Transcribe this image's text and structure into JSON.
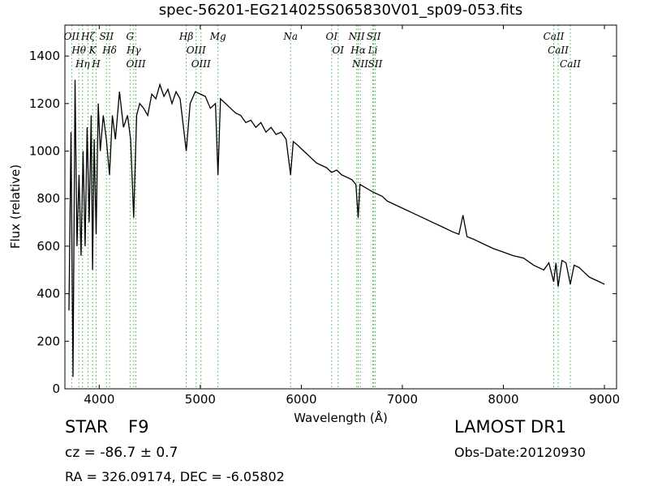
{
  "chart_data": {
    "type": "line",
    "title": "spec-56201-EG214025S065830V01_sp09-053.fits",
    "xlabel": "Wavelength (Å)",
    "ylabel": "Flux (relative)",
    "xlim": [
      3660,
      9120
    ],
    "ylim": [
      0,
      1530
    ],
    "xticks": [
      4000,
      5000,
      6000,
      7000,
      8000,
      9000
    ],
    "yticks": [
      0,
      200,
      400,
      600,
      800,
      1000,
      1200,
      1400
    ],
    "color": "#000000",
    "line_color": "#3cb043",
    "x": [
      3700,
      3720,
      3740,
      3760,
      3780,
      3800,
      3820,
      3840,
      3860,
      3880,
      3900,
      3920,
      3934,
      3950,
      3969,
      3990,
      4010,
      4040,
      4070,
      4102,
      4130,
      4160,
      4200,
      4240,
      4280,
      4310,
      4341,
      4370,
      4400,
      4440,
      4480,
      4520,
      4560,
      4600,
      4640,
      4680,
      4720,
      4760,
      4800,
      4861,
      4900,
      4950,
      5000,
      5050,
      5100,
      5150,
      5175,
      5200,
      5250,
      5300,
      5350,
      5400,
      5450,
      5500,
      5550,
      5600,
      5650,
      5700,
      5750,
      5800,
      5850,
      5894,
      5920,
      5950,
      6000,
      6050,
      6100,
      6150,
      6200,
      6250,
      6300,
      6350,
      6400,
      6450,
      6500,
      6540,
      6563,
      6580,
      6620,
      6660,
      6700,
      6750,
      6800,
      6850,
      6900,
      6950,
      7000,
      7100,
      7200,
      7300,
      7400,
      7500,
      7560,
      7600,
      7640,
      7700,
      7800,
      7900,
      8000,
      8100,
      8200,
      8300,
      8400,
      8450,
      8498,
      8520,
      8542,
      8580,
      8620,
      8662,
      8700,
      8750,
      8800,
      8850,
      8900,
      8950,
      9000
    ],
    "values": [
      330,
      1080,
      50,
      1300,
      600,
      900,
      560,
      1000,
      600,
      1100,
      700,
      1150,
      500,
      1050,
      650,
      1200,
      1000,
      1150,
      1050,
      900,
      1150,
      1050,
      1250,
      1100,
      1150,
      1050,
      720,
      1150,
      1200,
      1180,
      1150,
      1240,
      1220,
      1280,
      1230,
      1260,
      1200,
      1250,
      1220,
      1000,
      1200,
      1250,
      1240,
      1230,
      1180,
      1200,
      900,
      1220,
      1200,
      1180,
      1160,
      1150,
      1120,
      1130,
      1100,
      1120,
      1080,
      1100,
      1070,
      1080,
      1050,
      900,
      1040,
      1030,
      1010,
      990,
      970,
      950,
      940,
      930,
      910,
      920,
      900,
      890,
      880,
      860,
      720,
      860,
      850,
      840,
      830,
      820,
      810,
      790,
      780,
      770,
      760,
      740,
      720,
      700,
      680,
      660,
      650,
      730,
      640,
      630,
      610,
      590,
      575,
      560,
      550,
      520,
      500,
      530,
      450,
      530,
      430,
      540,
      530,
      440,
      520,
      510,
      490,
      470,
      460,
      450,
      440
    ],
    "spectral_lines": [
      {
        "label": "OII",
        "x": 3727
      },
      {
        "label": "Hθ",
        "x": 3798
      },
      {
        "label": "Hη",
        "x": 3835
      },
      {
        "label": "Hζ",
        "x": 3889
      },
      {
        "label": "K",
        "x": 3934
      },
      {
        "label": "H",
        "x": 3969
      },
      {
        "label": "SII",
        "x": 4072
      },
      {
        "label": "Hδ",
        "x": 4102
      },
      {
        "label": "G",
        "x": 4305
      },
      {
        "label": "Hγ",
        "x": 4341
      },
      {
        "label": "OIII",
        "x": 4363
      },
      {
        "label": "Hβ",
        "x": 4861
      },
      {
        "label": "OIII",
        "x": 4959
      },
      {
        "label": "OIII",
        "x": 5007
      },
      {
        "label": "Mg",
        "x": 5175
      },
      {
        "label": "Na",
        "x": 5894
      },
      {
        "label": "OI",
        "x": 6300
      },
      {
        "label": "OI",
        "x": 6364
      },
      {
        "label": "NII",
        "x": 6548
      },
      {
        "label": "Hα",
        "x": 6563
      },
      {
        "label": "NII",
        "x": 6583
      },
      {
        "label": "Li",
        "x": 6708
      },
      {
        "label": "SII",
        "x": 6716
      },
      {
        "label": "SII",
        "x": 6731
      },
      {
        "label": "CaII",
        "x": 8498
      },
      {
        "label": "CaII",
        "x": 8542
      },
      {
        "label": "CaII",
        "x": 8662
      }
    ]
  },
  "footer": {
    "object_class": "STAR",
    "subclass": "F9",
    "redshift": "cz = -86.7 ± 0.7",
    "survey": "LAMOST DR1",
    "obs_date": "Obs-Date:20120930",
    "coordinates": "RA = 326.09174, DEC = -6.05802"
  }
}
